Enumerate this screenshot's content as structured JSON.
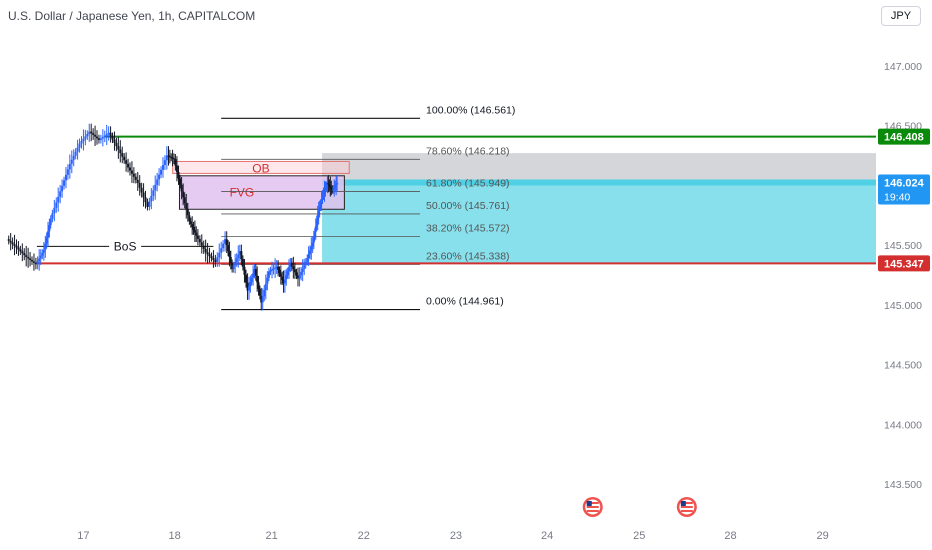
{
  "header": {
    "title": "U.S. Dollar / Japanese Yen, 1h, CAPITALCOM",
    "currency": "JPY"
  },
  "colors": {
    "up": "#2962ff",
    "down": "#131722",
    "green_line": "#0a8a0a",
    "red_line": "#d32f2f",
    "cyan_zone": "#88e0ec",
    "grey_zone": "#d5d6da",
    "fvg_fill": "#e1c2ef"
  },
  "chart_data": {
    "type": "candlestick",
    "title": "U.S. Dollar / Japanese Yen, 1h, CAPITALCOM",
    "ylim": [
      143.2,
      147.3
    ],
    "y_ticks": [
      "147.000",
      "146.500",
      "145.500",
      "145.000",
      "144.500",
      "144.000",
      "143.500"
    ],
    "x_ticks": [
      {
        "label": "17",
        "t": 0.78
      },
      {
        "label": "18",
        "t": 1.72
      },
      {
        "label": "21",
        "t": 2.72
      },
      {
        "label": "22",
        "t": 3.67
      },
      {
        "label": "23",
        "t": 4.62
      },
      {
        "label": "24",
        "t": 5.56
      },
      {
        "label": "25",
        "t": 6.51
      },
      {
        "label": "28",
        "t": 7.45
      },
      {
        "label": "29",
        "t": 8.4
      }
    ],
    "xlim": [
      -0.08,
      8.95
    ],
    "price_path": [
      [
        0.0,
        145.55
      ],
      [
        0.1,
        145.48
      ],
      [
        0.2,
        145.4
      ],
      [
        0.3,
        145.34
      ],
      [
        0.38,
        145.46
      ],
      [
        0.45,
        145.72
      ],
      [
        0.55,
        145.95
      ],
      [
        0.65,
        146.18
      ],
      [
        0.75,
        146.35
      ],
      [
        0.85,
        146.45
      ],
      [
        0.95,
        146.38
      ],
      [
        1.05,
        146.44
      ],
      [
        1.15,
        146.3
      ],
      [
        1.25,
        146.15
      ],
      [
        1.35,
        146.02
      ],
      [
        1.45,
        145.82
      ],
      [
        1.55,
        146.05
      ],
      [
        1.65,
        146.25
      ],
      [
        1.72,
        146.22
      ],
      [
        1.8,
        145.95
      ],
      [
        1.88,
        145.7
      ],
      [
        1.95,
        145.58
      ],
      [
        2.05,
        145.44
      ],
      [
        2.15,
        145.36
      ],
      [
        2.25,
        145.55
      ],
      [
        2.32,
        145.3
      ],
      [
        2.4,
        145.45
      ],
      [
        2.48,
        145.12
      ],
      [
        2.55,
        145.3
      ],
      [
        2.62,
        145.02
      ],
      [
        2.7,
        145.28
      ],
      [
        2.78,
        145.32
      ],
      [
        2.85,
        145.18
      ],
      [
        2.92,
        145.35
      ],
      [
        3.0,
        145.22
      ],
      [
        3.08,
        145.36
      ],
      [
        3.15,
        145.52
      ],
      [
        3.2,
        145.75
      ],
      [
        3.25,
        145.92
      ],
      [
        3.3,
        146.02
      ],
      [
        3.35,
        145.96
      ],
      [
        3.4,
        146.02
      ]
    ],
    "levels": [
      {
        "name": "green-level",
        "value": 146.408,
        "label": "146.408",
        "color": "#0a8a0a"
      },
      {
        "name": "last-price",
        "value": 146.024,
        "label": "146.024",
        "sub_label": "19:40",
        "color": "#2196f3"
      },
      {
        "name": "red-level",
        "value": 145.347,
        "label": "145.347",
        "color": "#d32f2f"
      }
    ],
    "fib": {
      "t_start": 2.2,
      "t_end": 4.25,
      "levels": [
        {
          "ratio": "100.00%",
          "value": 146.561,
          "label": "100.00% (146.561)"
        },
        {
          "ratio": "78.60%",
          "value": 146.218,
          "label": "78.60% (146.218)"
        },
        {
          "ratio": "61.80%",
          "value": 145.949,
          "label": "61.80% (145.949)"
        },
        {
          "ratio": "50.00%",
          "value": 145.761,
          "label": "50.00% (145.761)"
        },
        {
          "ratio": "38.20%",
          "value": 145.572,
          "label": "38.20% (145.572)"
        },
        {
          "ratio": "23.60%",
          "value": 145.338,
          "label": "23.60% (145.338)"
        },
        {
          "ratio": "0.00%",
          "value": 144.961,
          "label": "0.00% (144.961)"
        }
      ]
    },
    "zones": {
      "grey": {
        "t_start": 3.24,
        "t_end": 8.95,
        "top": 146.27,
        "bottom": 145.347
      },
      "cyan": {
        "t_start": 3.24,
        "t_end": 8.95,
        "top": 146.024,
        "bottom": 145.347
      },
      "ob": {
        "label": "OB",
        "t_start": 1.7,
        "t_end": 3.52,
        "top": 146.2,
        "bottom": 146.1
      },
      "fvg": {
        "label": "FVG",
        "t_start": 1.77,
        "t_end": 3.47,
        "top": 146.08,
        "bottom": 145.8
      }
    },
    "bos": {
      "label": "BoS",
      "t_start": 0.3,
      "t_end": 2.12,
      "value": 145.49
    }
  }
}
